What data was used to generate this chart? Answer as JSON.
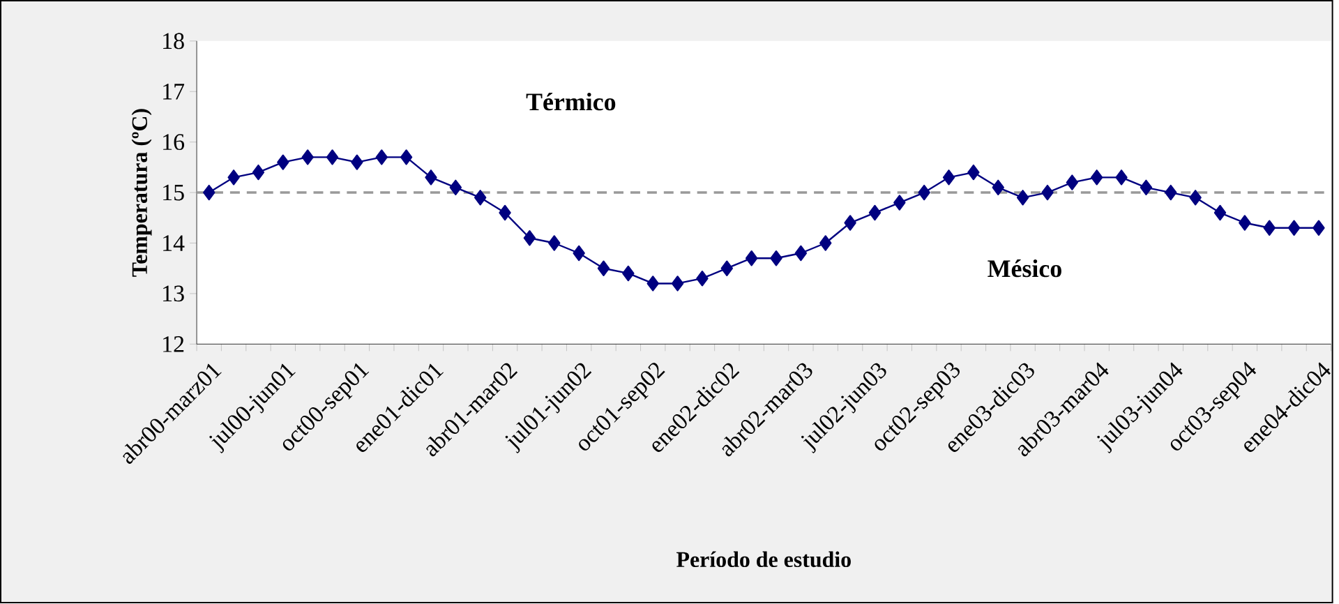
{
  "chart_data": {
    "type": "line",
    "categories": [
      "abr00-marz01",
      null,
      null,
      "jul00-jun01",
      null,
      null,
      "oct00-sep01",
      null,
      null,
      "ene01-dic01",
      null,
      null,
      "abr01-mar02",
      null,
      null,
      "jul01-jun02",
      null,
      null,
      "oct01-sep02",
      null,
      null,
      "ene02-dic02",
      null,
      null,
      "abr02-mar03",
      null,
      null,
      "jul02-jun03",
      null,
      null,
      "oct02-sep03",
      null,
      null,
      "ene03-dic03",
      null,
      null,
      "abr03-mar04",
      null,
      null,
      "jul03-jun04",
      null,
      null,
      "oct03-sep04",
      null,
      null,
      "ene04-dic04"
    ],
    "series": [
      {
        "color": "#000080",
        "values": [
          15.0,
          15.3,
          15.4,
          15.6,
          15.7,
          15.7,
          15.6,
          15.7,
          15.7,
          15.3,
          15.1,
          14.9,
          14.6,
          14.1,
          14.0,
          13.8,
          13.5,
          13.4,
          13.2,
          13.2,
          13.3,
          13.5,
          13.7,
          13.7,
          13.8,
          14.0,
          14.4,
          14.6,
          14.8,
          15.0,
          15.3,
          15.4,
          15.1,
          14.9,
          15.0,
          15.2,
          15.3,
          15.3,
          15.1,
          15.0,
          14.9,
          14.6,
          14.4,
          14.3,
          14.3,
          14.3
        ]
      }
    ],
    "xlabel": "Período de estudio",
    "ylabel": "Temperatura (ºC)",
    "ylim": [
      12,
      18
    ],
    "yticks": [
      12,
      13,
      14,
      15,
      16,
      17,
      18
    ],
    "annotations": [
      "Térmico",
      "Mésico"
    ],
    "ref_lines": [
      {
        "axis": "y",
        "value": 15,
        "color": "#999999",
        "line_style": "dashed"
      }
    ],
    "marker": "diamond",
    "line_style": "solid"
  }
}
